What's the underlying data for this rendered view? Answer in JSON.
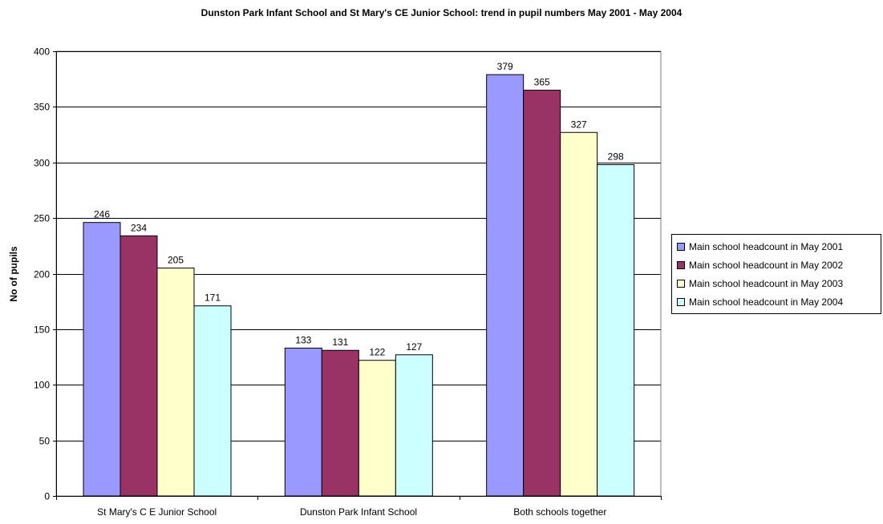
{
  "chart_data": {
    "type": "bar",
    "title": "Dunston Park Infant School and St Mary's CE Junior School: trend in pupil numbers May 2001 - May 2004",
    "ylabel": "No of pupils",
    "xlabel": "",
    "categories": [
      "St Mary's C E Junior School",
      "Dunston Park Infant School",
      "Both schools together"
    ],
    "series": [
      {
        "name": "Main school headcount in May 2001",
        "color": "#9999ff",
        "values": [
          246,
          133,
          379
        ]
      },
      {
        "name": "Main school headcount in May 2002",
        "color": "#993366",
        "values": [
          234,
          131,
          365
        ]
      },
      {
        "name": "Main school headcount in May 2003",
        "color": "#ffffcc",
        "values": [
          205,
          122,
          327
        ]
      },
      {
        "name": "Main school headcount in May 2004",
        "color": "#ccffff",
        "values": [
          171,
          127,
          298
        ]
      }
    ],
    "ylim": [
      0,
      400
    ],
    "yticks": [
      0,
      50,
      100,
      150,
      200,
      250,
      300,
      350,
      400
    ],
    "grid": true,
    "legend_position": "right"
  }
}
